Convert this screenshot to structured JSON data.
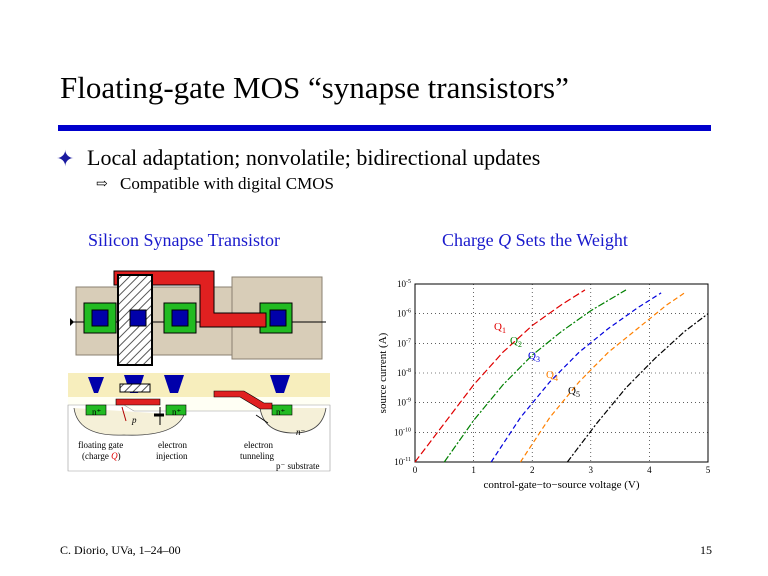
{
  "title": "Floating-gate MOS “synapse transistors”",
  "bullet": {
    "main": "Local adaptation; nonvolatile; bidirectional updates",
    "sub": "Compatible with digital CMOS"
  },
  "left_panel": {
    "heading": "Silicon Synapse Transistor",
    "labels": {
      "n_plus": "n⁺",
      "p": "p",
      "n_minus": "n⁻",
      "floating_gate": "floating gate",
      "charge": "(charge",
      "q": "Q",
      "electron_injection_1": "electron",
      "electron_injection_2": "injection",
      "electron_tunneling_1": "electron",
      "electron_tunneling_2": "tunneling",
      "substrate": "p⁻ substrate"
    }
  },
  "right_panel": {
    "heading_pre": "Charge ",
    "heading_q": "Q",
    "heading_post": " Sets the Weight"
  },
  "chart_data": {
    "type": "line",
    "xlabel": "control-gate−to−source voltage  (V)",
    "ylabel": "source current  (A)",
    "xlim": [
      0,
      5
    ],
    "ylim_exponent": [
      -11,
      -5
    ],
    "log_y": true,
    "grid": "dotted",
    "x_ticks": [
      "0",
      "1",
      "2",
      "3",
      "4",
      "5"
    ],
    "y_tick_exponents": [
      -11,
      -10,
      -9,
      -8,
      -7,
      -6,
      -5
    ],
    "series": [
      {
        "name": "Q1",
        "color": "#e00000",
        "dash": "7 3",
        "x": [
          0.0,
          0.5,
          1.0,
          1.5,
          2.0,
          2.5,
          2.9
        ],
        "log10_y": [
          -11,
          -9.7,
          -8.4,
          -7.3,
          -6.4,
          -5.7,
          -5.2
        ]
      },
      {
        "name": "Q2",
        "color": "#008000",
        "dash": "7 2 2 2",
        "x": [
          0.5,
          1.0,
          1.5,
          2.0,
          2.5,
          3.0,
          3.6
        ],
        "log10_y": [
          -11,
          -9.6,
          -8.4,
          -7.4,
          -6.6,
          -5.9,
          -5.2
        ]
      },
      {
        "name": "Q3",
        "color": "#0000dd",
        "dash": "5 3",
        "x": [
          1.3,
          1.8,
          2.3,
          2.8,
          3.3,
          3.8,
          4.2
        ],
        "log10_y": [
          -11,
          -9.5,
          -8.3,
          -7.3,
          -6.5,
          -5.8,
          -5.3
        ]
      },
      {
        "name": "Q4",
        "color": "#ff8000",
        "dash": "5 3",
        "x": [
          1.8,
          2.3,
          2.8,
          3.3,
          3.8,
          4.3,
          4.6
        ],
        "log10_y": [
          -11,
          -9.5,
          -8.3,
          -7.3,
          -6.5,
          -5.7,
          -5.3
        ]
      },
      {
        "name": "Q5",
        "color": "#000000",
        "dash": "6 2 2 2",
        "x": [
          2.6,
          3.1,
          3.6,
          4.1,
          4.6,
          5.0
        ],
        "log10_y": [
          -11,
          -9.7,
          -8.5,
          -7.5,
          -6.6,
          -6.0
        ]
      }
    ]
  },
  "footer": {
    "author": "C. Diorio, UVa, 1–24–00",
    "page": "15"
  }
}
